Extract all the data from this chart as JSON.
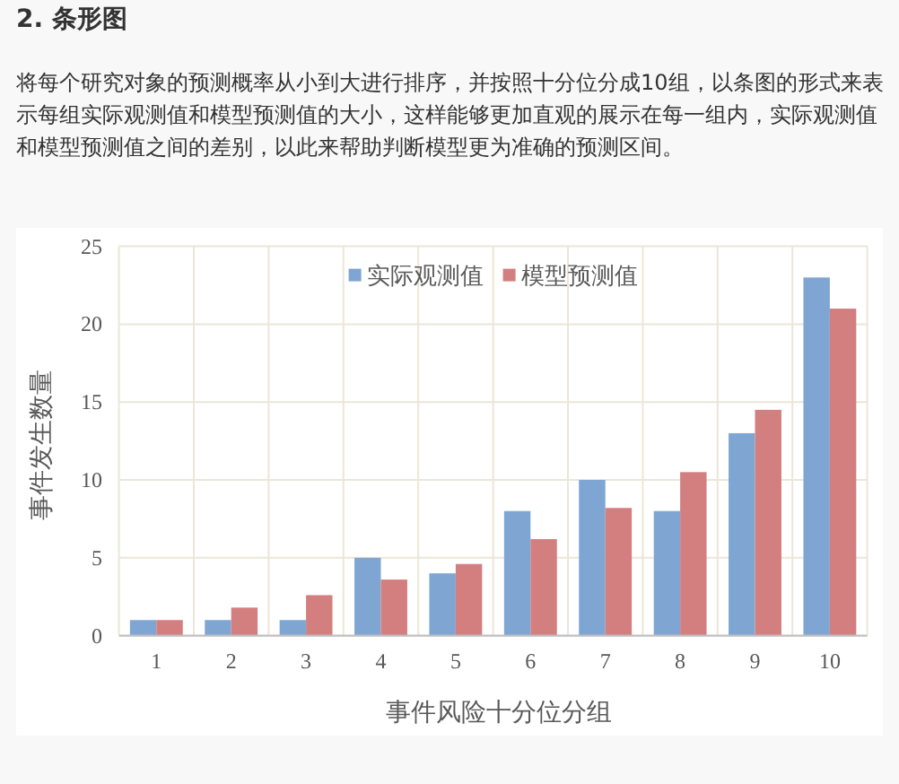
{
  "chart_data": {
    "type": "bar",
    "title": "2. 条形图",
    "subtitle": "将每个研究对象的预测概率从小到大进行排序，并按照十分位分成10组，以条图的形式来表示每组实际观测值和模型预测值的大小，这样能够更加直观的展示在每一组内，实际观测值和模型预测值之间的差别，以此来帮助判断模型更为准确的预测区间。",
    "xlabel": "事件风险十分位分组",
    "ylabel": "事件发生数量",
    "categories": [
      "1",
      "2",
      "3",
      "4",
      "5",
      "6",
      "7",
      "8",
      "9",
      "10"
    ],
    "series": [
      {
        "name": "实际观测值",
        "color": "#7fa6d3",
        "values": [
          1,
          1,
          1,
          5,
          4,
          8,
          10,
          8,
          13,
          23
        ]
      },
      {
        "name": "模型预测值",
        "color": "#d47f7f",
        "values": [
          1,
          1.8,
          2.6,
          3.6,
          4.6,
          6.2,
          8.2,
          10.5,
          14.5,
          21
        ]
      }
    ],
    "ylim": [
      0,
      25
    ],
    "yticks": [
      0,
      5,
      10,
      15,
      20,
      25
    ],
    "grid": true,
    "legend": "top"
  }
}
